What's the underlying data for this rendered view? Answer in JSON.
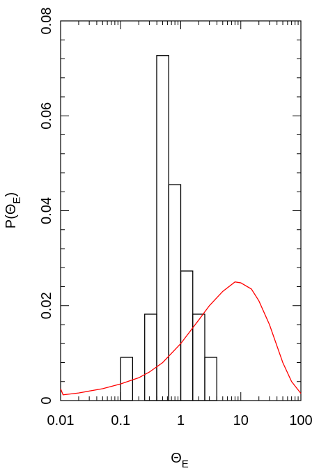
{
  "chart_data": {
    "type": "histogram",
    "xlabel": [
      "Θ",
      "E"
    ],
    "ylabel": [
      "P(Θ",
      "E",
      ")"
    ],
    "xscale": "log",
    "xlim": [
      0.01,
      100
    ],
    "xticks": [
      0.01,
      0.1,
      1,
      10,
      100
    ],
    "ylim": [
      0,
      0.08
    ],
    "yticks": [
      0,
      0.02,
      0.04,
      0.06,
      0.08
    ],
    "bins": [
      0.1,
      0.158,
      0.251,
      0.398,
      0.631,
      1,
      1.585,
      2.512,
      3.981
    ],
    "values": [
      0.0091,
      0,
      0.0182,
      0.0727,
      0.0455,
      0.0273,
      0.0182,
      0.0091
    ],
    "color": "#000000",
    "curve": {
      "type": "line",
      "color": "#ff0000",
      "x": [
        0.01,
        0.011,
        0.02,
        0.05,
        0.1,
        0.2,
        0.3,
        0.5,
        1,
        2,
        3,
        5,
        8,
        10,
        15,
        20,
        30,
        50,
        70,
        100
      ],
      "values": [
        0.0025,
        0.0012,
        0.0016,
        0.0025,
        0.0035,
        0.0048,
        0.006,
        0.008,
        0.012,
        0.017,
        0.02,
        0.023,
        0.025,
        0.0248,
        0.0235,
        0.021,
        0.016,
        0.008,
        0.004,
        0.0015
      ]
    }
  }
}
